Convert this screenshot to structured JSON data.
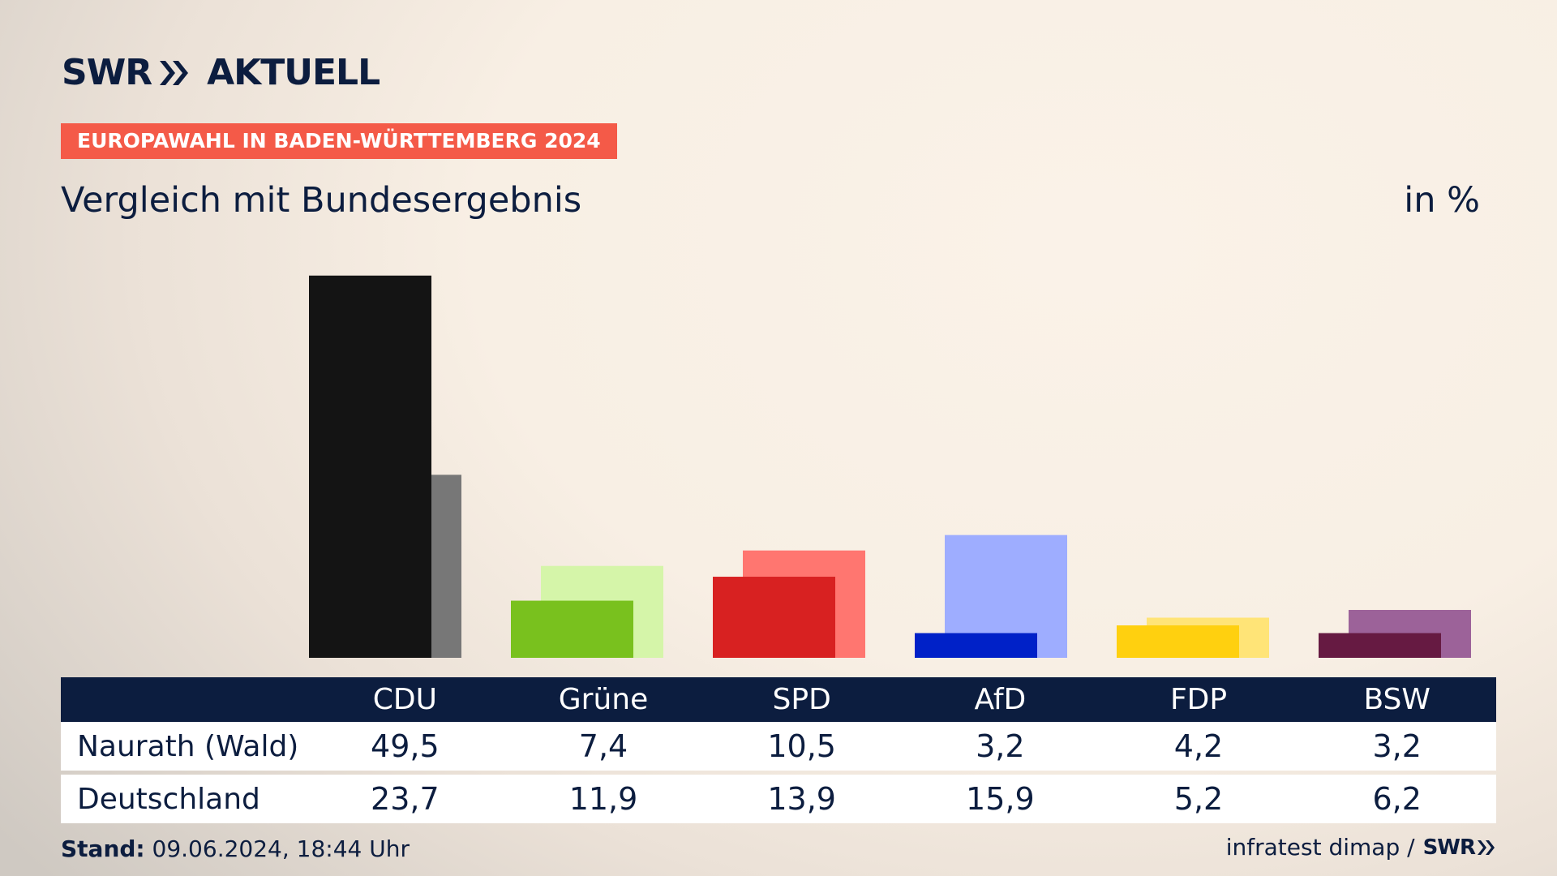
{
  "header": {
    "logo_part1": "SWR",
    "logo_part2": "AKTUELL",
    "kicker": "EUROPAWAHL IN BADEN-WÜRTTEMBERG 2024",
    "title": "Vergleich mit Bundesergebnis",
    "unit": "in %"
  },
  "colors": {
    "brand_navy": "#0c1d3f",
    "kicker_bg": "#f45a48"
  },
  "chart_data": {
    "type": "bar",
    "categories": [
      "CDU",
      "Grüne",
      "SPD",
      "AfD",
      "FDP",
      "BSW"
    ],
    "series": [
      {
        "name": "Naurath (Wald)",
        "values": [
          49.5,
          7.4,
          10.5,
          3.2,
          4.2,
          3.2
        ]
      },
      {
        "name": "Deutschland",
        "values": [
          23.7,
          11.9,
          13.9,
          15.9,
          5.2,
          6.2
        ]
      }
    ],
    "colors_local": [
      "#141414",
      "#79c11e",
      "#d82121",
      "#0021c8",
      "#ffd00f",
      "#661a42"
    ],
    "colors_national": [
      "#777777",
      "#d5f5a9",
      "#ff7670",
      "#9eadff",
      "#ffe477",
      "#9c6299"
    ],
    "ylim": [
      0,
      50
    ]
  },
  "table": {
    "rows": [
      {
        "label": "Naurath (Wald)",
        "values": [
          "49,5",
          "7,4",
          "10,5",
          "3,2",
          "4,2",
          "3,2"
        ]
      },
      {
        "label": "Deutschland",
        "values": [
          "23,7",
          "11,9",
          "13,9",
          "15,9",
          "5,2",
          "6,2"
        ]
      }
    ]
  },
  "footer": {
    "stand_label": "Stand:",
    "stand_value": "09.06.2024, 18:44 Uhr",
    "source": "infratest dimap /",
    "source_logo": "SWR"
  }
}
